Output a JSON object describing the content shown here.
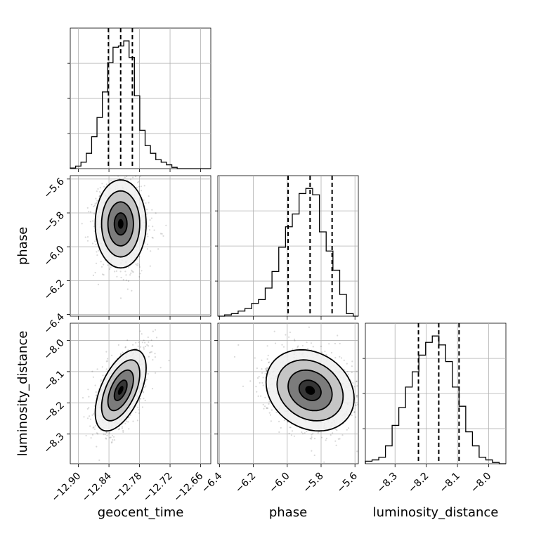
{
  "chart_data": {
    "type": "corner",
    "parameters": [
      "geocent_time",
      "phase",
      "luminosity_distance"
    ],
    "axis_labels": {
      "x": [
        "geocent_time",
        "phase",
        "luminosity_distance"
      ],
      "y": [
        "",
        "phase",
        "luminosity_distance"
      ]
    },
    "ranges": {
      "geocent_time": [
        -12.916,
        -12.64
      ],
      "phase": [
        -6.41,
        -5.58
      ],
      "luminosity_distance": [
        -8.395,
        -7.945
      ]
    },
    "ticks": {
      "geocent_time": [
        -12.9,
        -12.84,
        -12.78,
        -12.72,
        -12.66
      ],
      "phase": [
        -6.4,
        -6.2,
        -6.0,
        -5.8,
        -5.6
      ],
      "luminosity_distance": [
        -8.3,
        -8.2,
        -8.1,
        -8.0
      ]
    },
    "tick_labels": {
      "geocent_time": [
        "−12.90",
        "−12.84",
        "−12.78",
        "−12.72",
        "−12.66"
      ],
      "phase_x": [
        "−6.4",
        "−6.2",
        "−6.0",
        "−5.8",
        "−5.6"
      ],
      "phase_y": [
        "−5.6",
        "−5.8",
        "−6.0",
        "−6.2",
        "−6.4"
      ],
      "luminosity_distance_x": [
        "−8.3",
        "−8.2",
        "−8.1",
        "−8.0"
      ],
      "luminosity_distance_y": [
        "−8.0",
        "−8.1",
        "−8.2",
        "−8.3"
      ]
    },
    "grid": true,
    "quantiles": {
      "geocent_time": [
        -12.841,
        -12.817,
        -12.794
      ],
      "phase": [
        -5.995,
        -5.865,
        -5.735
      ],
      "luminosity_distance": [
        -8.225,
        -8.16,
        -8.095
      ]
    },
    "histograms": {
      "geocent_time": {
        "edges": [
          -12.916,
          -12.9055,
          -12.895,
          -12.8845,
          -12.874,
          -12.8635,
          -12.853,
          -12.8425,
          -12.832,
          -12.8215,
          -12.811,
          -12.8005,
          -12.79,
          -12.7795,
          -12.769,
          -12.7585,
          -12.748,
          -12.7375,
          -12.727,
          -12.7165,
          -12.706,
          -12.64
        ],
        "counts": [
          0.005,
          0.02,
          0.05,
          0.12,
          0.25,
          0.4,
          0.6,
          0.83,
          0.95,
          0.96,
          1.0,
          0.87,
          0.57,
          0.3,
          0.18,
          0.12,
          0.07,
          0.05,
          0.03,
          0.01,
          0.0
        ]
      },
      "phase": {
        "edges": [
          -6.41,
          -6.37,
          -6.33,
          -6.29,
          -6.25,
          -6.21,
          -6.17,
          -6.13,
          -6.09,
          -6.05,
          -6.01,
          -5.97,
          -5.93,
          -5.89,
          -5.85,
          -5.81,
          -5.77,
          -5.73,
          -5.69,
          -5.65,
          -5.61,
          -5.58
        ],
        "counts": [
          0.0,
          0.01,
          0.02,
          0.04,
          0.06,
          0.1,
          0.13,
          0.22,
          0.35,
          0.54,
          0.7,
          0.8,
          0.96,
          1.0,
          0.95,
          0.66,
          0.51,
          0.36,
          0.17,
          0.02,
          0.0
        ]
      },
      "luminosity_distance": {
        "edges": [
          -8.395,
          -8.3736,
          -8.3521,
          -8.3307,
          -8.3093,
          -8.2879,
          -8.2664,
          -8.245,
          -8.2236,
          -8.2021,
          -8.1807,
          -8.1593,
          -8.1379,
          -8.1164,
          -8.095,
          -8.0736,
          -8.0521,
          -8.0307,
          -8.0093,
          -7.9879,
          -7.9664,
          -7.945
        ],
        "counts": [
          0.02,
          0.03,
          0.05,
          0.14,
          0.3,
          0.44,
          0.6,
          0.72,
          0.85,
          0.95,
          1.0,
          0.93,
          0.8,
          0.6,
          0.45,
          0.25,
          0.14,
          0.05,
          0.03,
          0.01,
          0.0
        ]
      }
    },
    "scatter": {
      "phase_vs_geocent_time": {
        "mean": [
          -12.817,
          -5.865
        ],
        "std": [
          0.025,
          0.13
        ],
        "corr": 0.0
      },
      "luminosity_distance_vs_geocent_time": {
        "mean": [
          -12.817,
          -8.16
        ],
        "std": [
          0.025,
          0.065
        ],
        "corr": 0.55
      },
      "luminosity_distance_vs_phase": {
        "mean": [
          -5.865,
          -8.16
        ],
        "std": [
          0.13,
          0.065
        ],
        "corr": -0.2
      }
    },
    "levels_sigma": [
      0.5,
      1.0,
      1.5,
      2.0
    ]
  }
}
